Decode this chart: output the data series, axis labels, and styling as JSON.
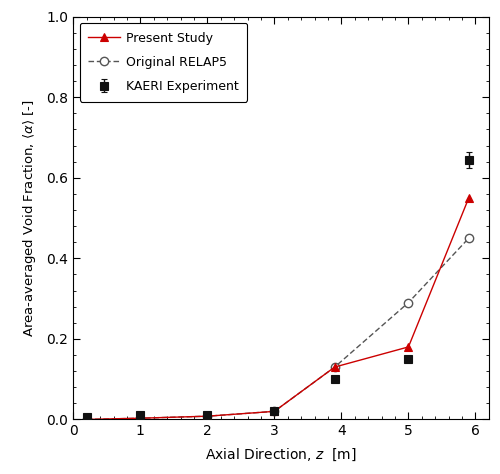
{
  "present_study_x": [
    0.2,
    1.0,
    2.0,
    3.0,
    3.9,
    5.0,
    5.9
  ],
  "present_study_y": [
    0.0,
    0.003,
    0.008,
    0.02,
    0.13,
    0.18,
    0.55
  ],
  "original_relap5_x": [
    0.2,
    1.0,
    2.0,
    3.0,
    3.9,
    5.0,
    5.9
  ],
  "original_relap5_y": [
    0.0,
    0.003,
    0.008,
    0.02,
    0.13,
    0.29,
    0.45
  ],
  "kaeri_x": [
    0.2,
    1.0,
    2.0,
    3.0,
    3.9,
    5.0,
    5.9
  ],
  "kaeri_y": [
    0.005,
    0.01,
    0.012,
    0.02,
    0.1,
    0.15,
    0.645
  ],
  "kaeri_yerr": [
    0.003,
    0.003,
    0.003,
    0.003,
    0.005,
    0.005,
    0.02
  ],
  "xlim": [
    0.0,
    6.2
  ],
  "ylim": [
    0.0,
    1.0
  ],
  "xticks": [
    0.0,
    1.0,
    2.0,
    3.0,
    4.0,
    5.0,
    6.0
  ],
  "yticks": [
    0.0,
    0.2,
    0.4,
    0.6,
    0.8,
    1.0
  ],
  "present_study_color": "#cc0000",
  "original_relap5_color": "#555555",
  "kaeri_color": "#111111",
  "legend_labels": [
    "Present Study",
    "Original RELAP5",
    "KAERI Experiment"
  ],
  "figsize": [
    5.0,
    4.74
  ],
  "dpi": 100
}
